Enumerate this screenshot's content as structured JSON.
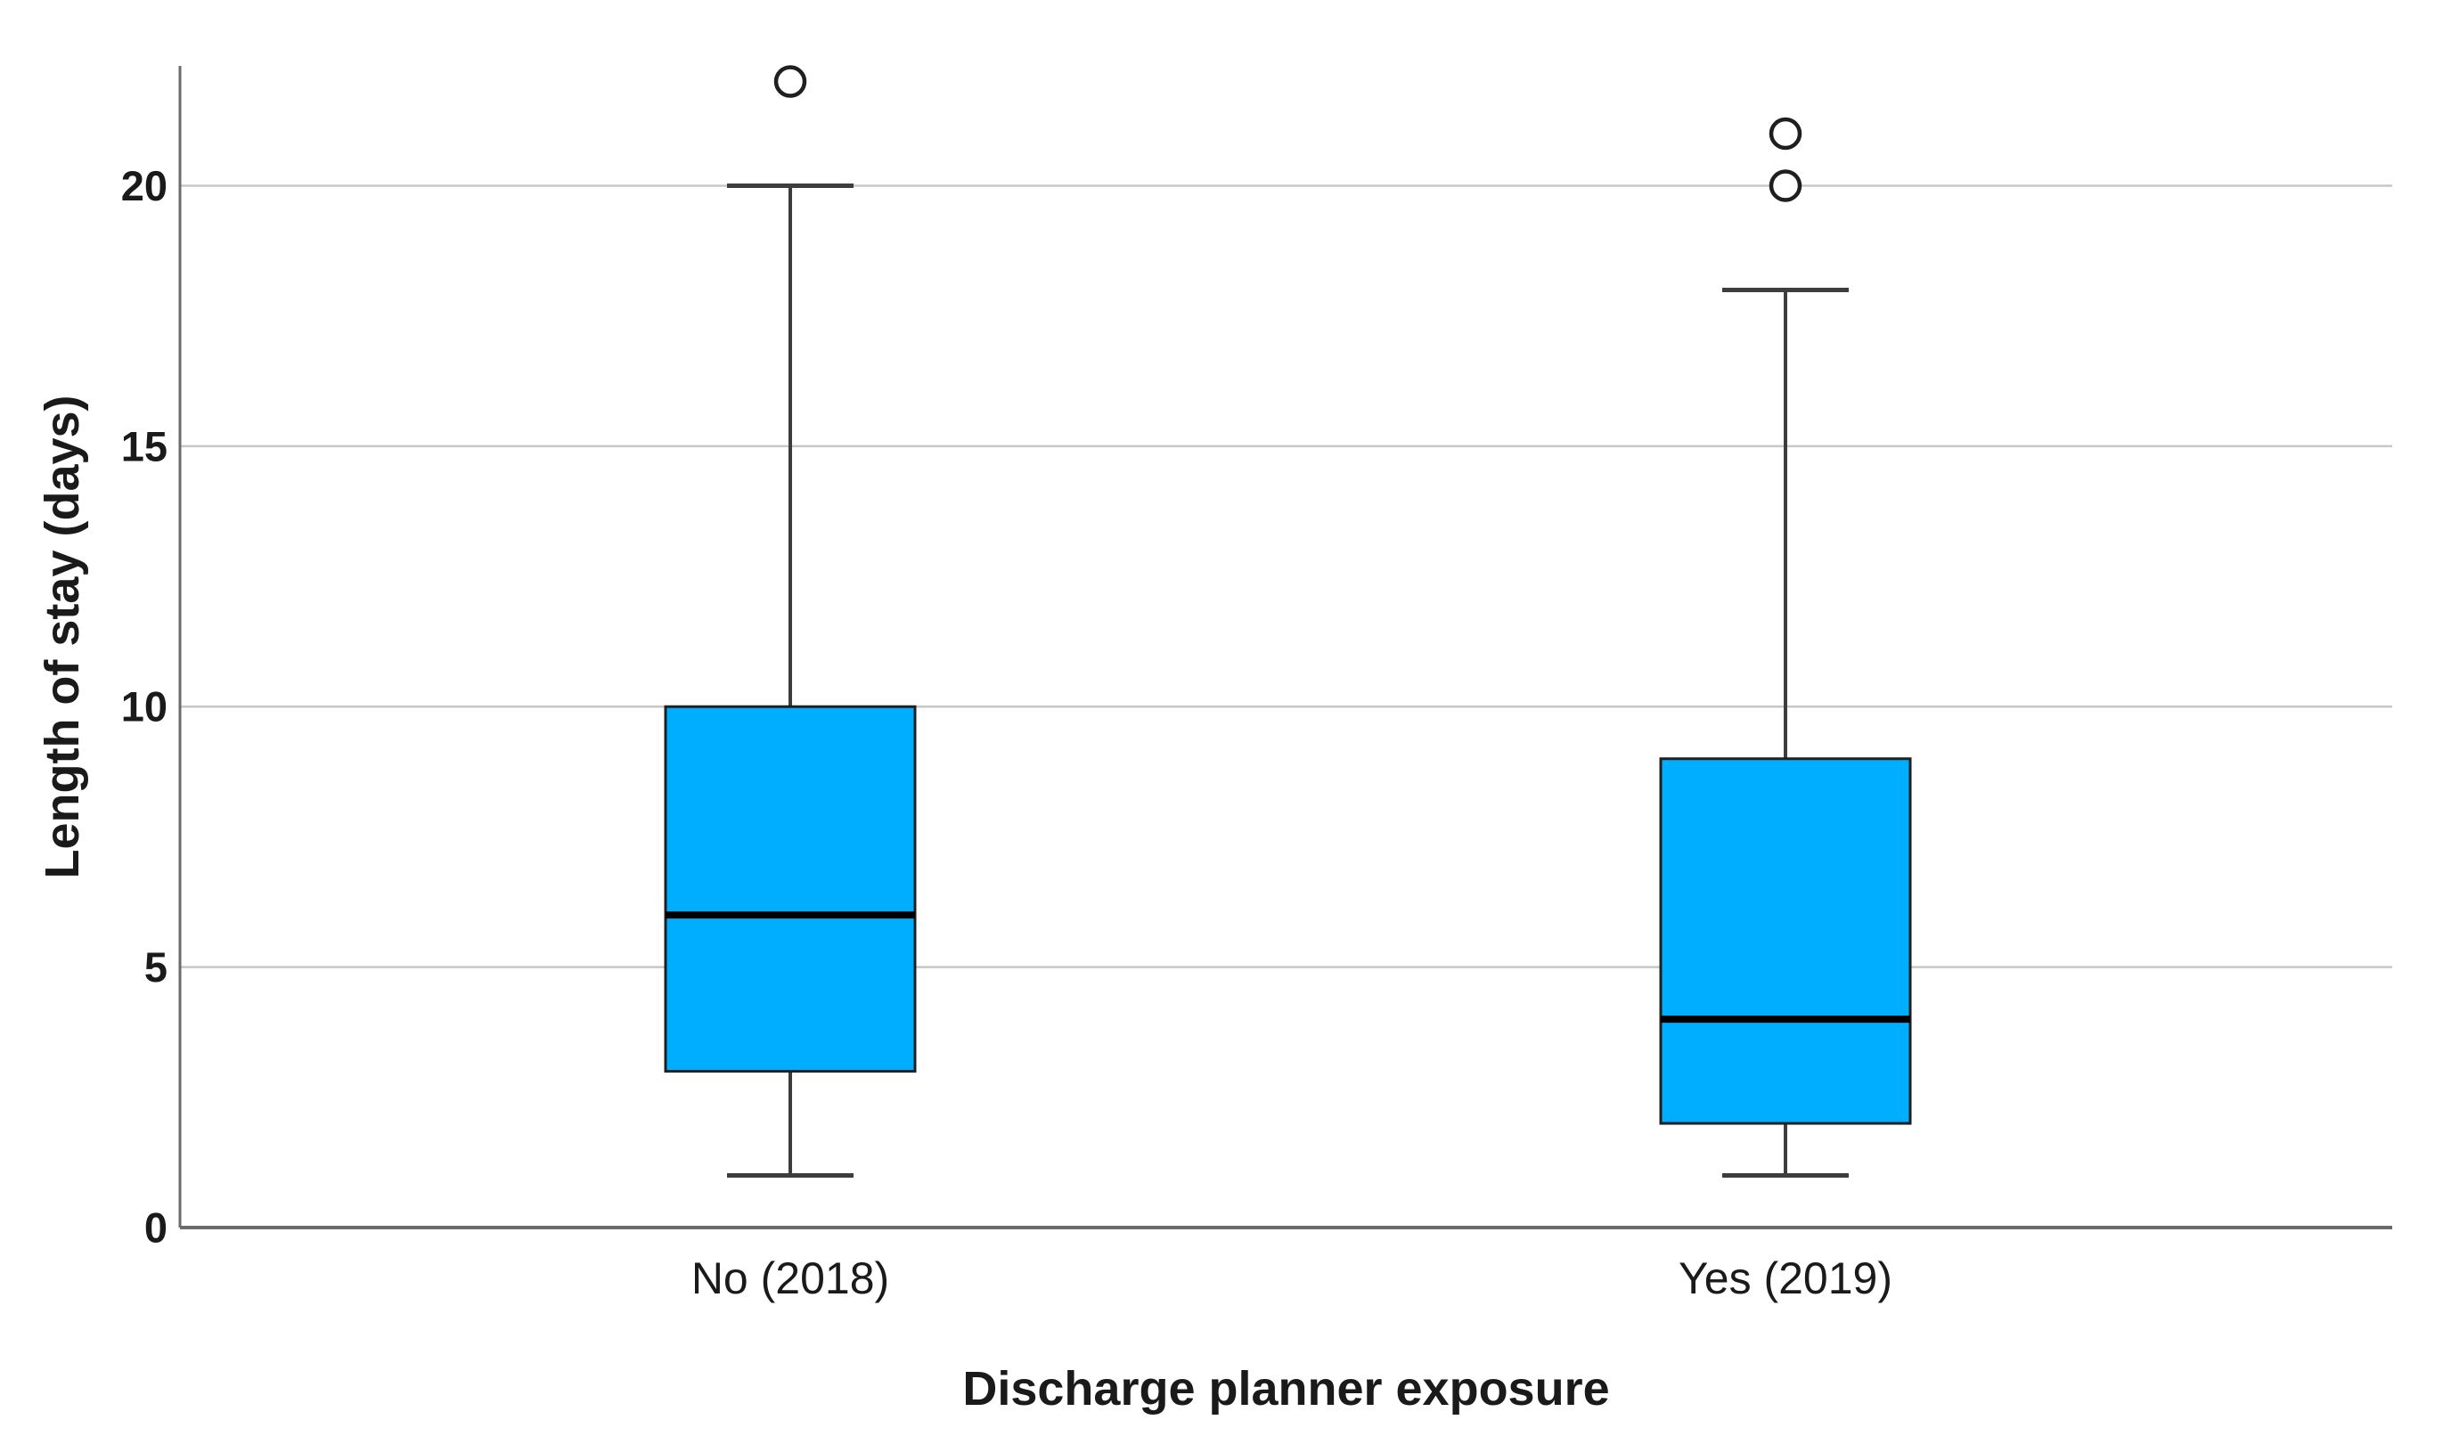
{
  "figure": {
    "background": "#ffffff"
  },
  "chart_data": {
    "type": "boxplot",
    "title": "",
    "xlabel": "Discharge planner exposure",
    "ylabel": "Length of stay (days)",
    "categories": [
      "No (2018)",
      "Yes (2019)"
    ],
    "y_ticks": [
      0,
      5,
      10,
      15,
      20
    ],
    "ylim": [
      0,
      22.3
    ],
    "grid": "horizontal",
    "legend": "none",
    "series": [
      {
        "category": "No (2018)",
        "whisker_low": 1,
        "q1": 3,
        "median": 6,
        "q3": 10,
        "whisker_high": 20,
        "outliers": [
          22
        ]
      },
      {
        "category": "Yes (2019)",
        "whisker_low": 1,
        "q1": 2,
        "median": 4,
        "q3": 9,
        "whisker_high": 18,
        "outliers": [
          20,
          21
        ]
      }
    ],
    "colors": {
      "box_fill": "#00AEFF",
      "box_border": "#1f1f1f",
      "median": "#000000",
      "whisker": "#3d3d3d",
      "gridline": "#c7c7c7",
      "axis": "#6b6b6b",
      "outlier_stroke": "#1f1f1f",
      "outlier_fill": "#ffffff",
      "text": "#1a1a1a"
    }
  }
}
